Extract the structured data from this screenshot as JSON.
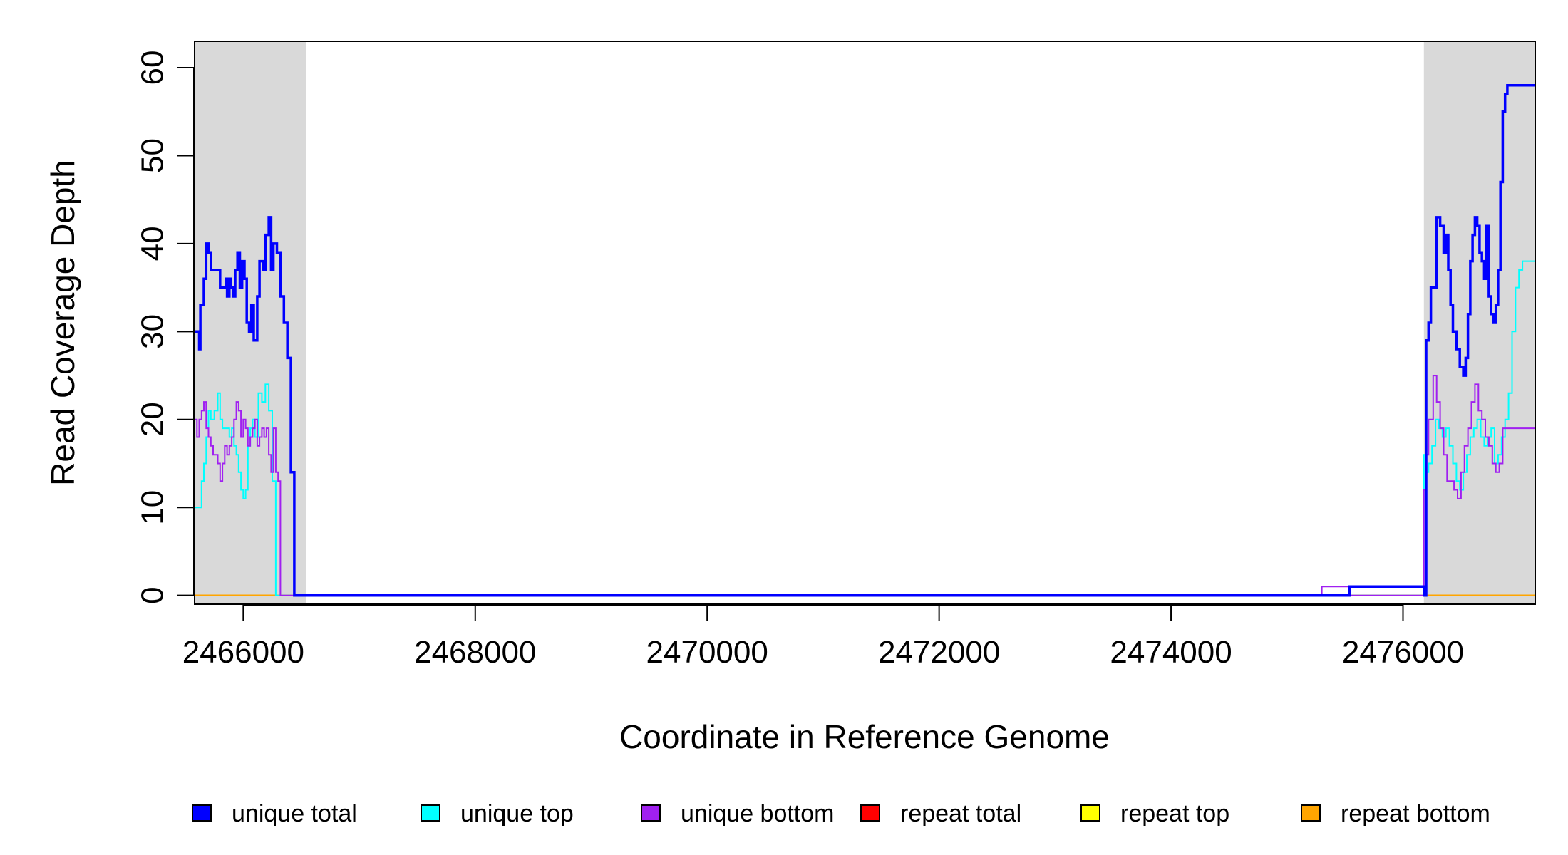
{
  "chart_data": {
    "type": "line",
    "title": "",
    "xlabel": "Coordinate in Reference Genome",
    "ylabel": "Read Coverage Depth",
    "xlim": [
      2465580,
      2477140
    ],
    "ylim": [
      -1,
      63
    ],
    "x_ticks": [
      2466000,
      2468000,
      2470000,
      2472000,
      2474000,
      2476000
    ],
    "x_tick_labels": [
      "2466000",
      "2468000",
      "2470000",
      "2472000",
      "2474000",
      "2476000"
    ],
    "y_ticks": [
      0,
      10,
      20,
      30,
      40,
      50,
      60
    ],
    "y_tick_labels": [
      "0",
      "10",
      "20",
      "30",
      "40",
      "50",
      "60"
    ],
    "grid": false,
    "shaded_regions": [
      {
        "x_start": 2465580,
        "x_end": 2466540,
        "color": "#d9d9d9"
      },
      {
        "x_start": 2476180,
        "x_end": 2477140,
        "color": "#d9d9d9"
      }
    ],
    "legend": {
      "placement": "bottom",
      "entries": [
        {
          "label": "unique total",
          "color": "#0000ff"
        },
        {
          "label": "unique top",
          "color": "#00ffff"
        },
        {
          "label": "unique bottom",
          "color": "#a020f0"
        },
        {
          "label": "repeat total",
          "color": "#ff0000"
        },
        {
          "label": "repeat top",
          "color": "#ffff00"
        },
        {
          "label": "repeat bottom",
          "color": "#ffa500"
        }
      ]
    },
    "series": [
      {
        "name": "unique total",
        "color": "#0000ff",
        "width": 3.5,
        "x": [
          2465580,
          2465620,
          2465630,
          2465660,
          2465680,
          2465700,
          2465720,
          2465760,
          2465800,
          2465850,
          2465860,
          2465880,
          2465890,
          2465910,
          2465930,
          2465950,
          2465970,
          2465990,
          2466010,
          2466030,
          2466050,
          2466070,
          2466090,
          2466120,
          2466140,
          2466170,
          2466190,
          2466220,
          2466240,
          2466260,
          2466290,
          2466320,
          2466350,
          2466380,
          2466410,
          2466440,
          2466460,
          2466490,
          2466510,
          2466530,
          2466550,
          2466560,
          2466580,
          2466600,
          2475300,
          2475540,
          2476180,
          2476200,
          2476220,
          2476240,
          2476260,
          2476290,
          2476320,
          2476350,
          2476370,
          2476390,
          2476410,
          2476430,
          2476460,
          2476490,
          2476520,
          2476540,
          2476560,
          2476580,
          2476600,
          2476620,
          2476640,
          2476660,
          2476680,
          2476700,
          2476720,
          2476740,
          2476760,
          2476780,
          2476800,
          2476820,
          2476840,
          2476860,
          2476880,
          2476900,
          2476920,
          2476940,
          2476960,
          2476980,
          2477000,
          2477020,
          2477040,
          2477060,
          2477080,
          2477100,
          2477120,
          2477140
        ],
        "y": [
          30,
          28,
          33,
          36,
          40,
          39,
          37,
          37,
          35,
          36,
          34,
          36,
          35,
          34,
          37,
          39,
          35,
          38,
          36,
          31,
          30,
          33,
          29,
          34,
          38,
          37,
          41,
          43,
          37,
          40,
          39,
          34,
          31,
          27,
          14,
          0,
          0,
          0,
          0,
          0,
          0,
          0,
          0,
          0,
          0,
          1,
          0,
          29,
          31,
          35,
          35,
          43,
          42,
          39,
          41,
          37,
          33,
          30,
          28,
          26,
          25,
          27,
          32,
          38,
          41,
          43,
          42,
          39,
          38,
          36,
          42,
          34,
          32,
          31,
          33,
          37,
          47,
          55,
          57,
          58,
          58,
          58,
          58,
          58,
          58,
          58,
          58,
          58,
          58,
          58,
          58,
          58
        ]
      },
      {
        "name": "unique top",
        "color": "#00ffff",
        "width": 2,
        "x": [
          2465580,
          2465640,
          2465660,
          2465680,
          2465700,
          2465720,
          2465750,
          2465780,
          2465800,
          2465820,
          2465860,
          2465880,
          2465900,
          2465920,
          2465940,
          2465960,
          2465980,
          2466000,
          2466020,
          2466040,
          2466060,
          2466080,
          2466100,
          2466130,
          2466160,
          2466190,
          2466220,
          2466250,
          2466280,
          2466300,
          2466320,
          2466340,
          2466370,
          2466400,
          2466430,
          2466460,
          2466490,
          2466510,
          2466530,
          2466550,
          2466600,
          2475300,
          2476180,
          2476200,
          2476220,
          2476250,
          2476280,
          2476310,
          2476340,
          2476370,
          2476400,
          2476430,
          2476460,
          2476490,
          2476520,
          2476550,
          2476580,
          2476610,
          2476640,
          2476670,
          2476700,
          2476730,
          2476760,
          2476790,
          2476820,
          2476850,
          2476880,
          2476910,
          2476940,
          2476970,
          2477000,
          2477030,
          2477060,
          2477090,
          2477120,
          2477140
        ],
        "y": [
          10,
          13,
          15,
          18,
          21,
          20,
          21,
          23,
          20,
          19,
          19,
          18,
          19,
          17,
          16,
          14,
          12,
          11,
          12,
          17,
          19,
          20,
          18,
          23,
          22,
          24,
          21,
          13,
          0,
          0,
          0,
          0,
          0,
          0,
          0,
          0,
          0,
          0,
          0,
          0,
          0,
          0,
          16,
          14,
          15,
          17,
          20,
          19,
          18,
          19,
          17,
          15,
          13,
          12,
          14,
          16,
          18,
          19,
          20,
          18,
          17,
          18,
          19,
          15,
          16,
          18,
          20,
          23,
          30,
          35,
          37,
          38,
          38,
          38,
          38,
          38
        ]
      },
      {
        "name": "unique bottom",
        "color": "#a020f0",
        "width": 2,
        "x": [
          2465580,
          2465600,
          2465620,
          2465640,
          2465660,
          2465680,
          2465700,
          2465720,
          2465740,
          2465760,
          2465780,
          2465800,
          2465820,
          2465840,
          2465860,
          2465880,
          2465900,
          2465920,
          2465940,
          2465960,
          2465980,
          2466000,
          2466020,
          2466040,
          2466060,
          2466080,
          2466100,
          2466120,
          2466140,
          2466160,
          2466180,
          2466200,
          2466220,
          2466240,
          2466260,
          2466280,
          2466300,
          2466320,
          2466340,
          2466360,
          2466380,
          2466400,
          2466420,
          2466440,
          2466460,
          2466480,
          2466500,
          2466520,
          2466540,
          2466560,
          2466580,
          2466600,
          2475300,
          2475540,
          2476180,
          2476200,
          2476220,
          2476240,
          2476260,
          2476290,
          2476320,
          2476350,
          2476380,
          2476410,
          2476440,
          2476470,
          2476500,
          2476530,
          2476560,
          2476590,
          2476620,
          2476650,
          2476680,
          2476710,
          2476740,
          2476770,
          2476800,
          2476830,
          2476860,
          2476890,
          2476920,
          2476950,
          2476980,
          2477010,
          2477040,
          2477070,
          2477100,
          2477140
        ],
        "y": [
          20,
          18,
          20,
          21,
          22,
          19,
          18,
          17,
          16,
          16,
          15,
          13,
          15,
          17,
          16,
          17,
          18,
          20,
          22,
          21,
          18,
          20,
          19,
          17,
          18,
          19,
          20,
          17,
          18,
          19,
          18,
          19,
          16,
          14,
          19,
          14,
          13,
          0,
          0,
          0,
          0,
          0,
          0,
          0,
          0,
          0,
          0,
          0,
          0,
          0,
          0,
          0,
          1,
          0,
          12,
          16,
          20,
          20,
          25,
          22,
          19,
          16,
          13,
          13,
          12,
          11,
          14,
          17,
          19,
          22,
          24,
          21,
          20,
          18,
          17,
          15,
          14,
          15,
          19,
          19,
          19,
          19,
          19,
          19,
          19,
          19,
          19,
          19
        ]
      },
      {
        "name": "repeat total",
        "color": "#ff0000",
        "width": 2,
        "x": [
          2465580,
          2477140
        ],
        "y": [
          0,
          0
        ]
      },
      {
        "name": "repeat top",
        "color": "#ffff00",
        "width": 2,
        "x": [
          2465580,
          2477140
        ],
        "y": [
          0,
          0
        ]
      },
      {
        "name": "repeat bottom",
        "color": "#ffa500",
        "width": 2.5,
        "x": [
          2465580,
          2477140
        ],
        "y": [
          0,
          0
        ]
      }
    ]
  }
}
